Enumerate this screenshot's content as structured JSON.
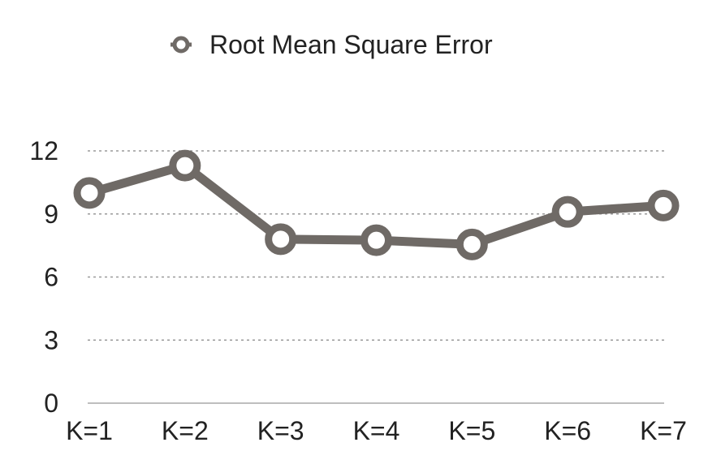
{
  "chart_data": {
    "type": "line",
    "title": "",
    "xlabel": "",
    "ylabel": "",
    "categories": [
      "K=1",
      "K=2",
      "K=3",
      "K=4",
      "K=5",
      "K=6",
      "K=7"
    ],
    "series": [
      {
        "name": "Root Mean Square Error",
        "values": [
          10.0,
          11.3,
          7.8,
          7.75,
          7.55,
          9.1,
          9.4
        ]
      }
    ],
    "ylim": [
      0,
      12
    ],
    "yticks": [
      "0",
      "3",
      "6",
      "9",
      "12"
    ],
    "ytick_values": [
      0,
      3,
      6,
      9,
      12
    ],
    "grid": true,
    "legend_position": "top-center",
    "series_color": "#6f6a66",
    "marker_fill": "#ffffff"
  }
}
